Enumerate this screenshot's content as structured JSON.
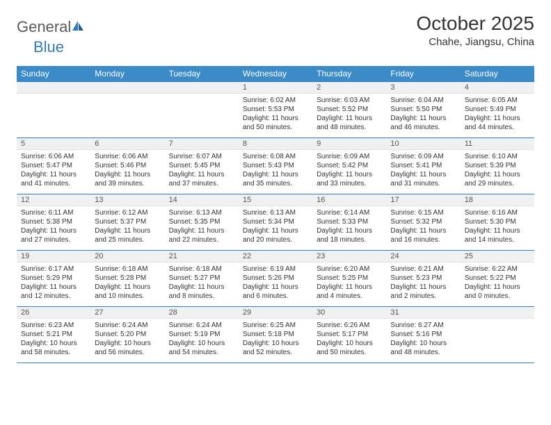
{
  "brand": {
    "general": "General",
    "blue": "Blue"
  },
  "title": "October 2025",
  "location": "Chahe, Jiangsu, China",
  "colors": {
    "header_bg": "#3b8bc9",
    "header_text": "#ffffff",
    "rule": "#2f7ac0",
    "daynum_bg": "#eef0f2",
    "body_text": "#333333",
    "logo_gray": "#5a5a5a",
    "logo_blue": "#2f7ac0"
  },
  "typography": {
    "title_fontsize": 28,
    "location_fontsize": 15,
    "dayhead_fontsize": 12,
    "daynum_fontsize": 11,
    "body_fontsize": 10
  },
  "day_names": [
    "Sunday",
    "Monday",
    "Tuesday",
    "Wednesday",
    "Thursday",
    "Friday",
    "Saturday"
  ],
  "weeks": [
    [
      null,
      null,
      null,
      {
        "n": "1",
        "sunrise": "6:02 AM",
        "sunset": "5:53 PM",
        "daylight": "11 hours and 50 minutes."
      },
      {
        "n": "2",
        "sunrise": "6:03 AM",
        "sunset": "5:52 PM",
        "daylight": "11 hours and 48 minutes."
      },
      {
        "n": "3",
        "sunrise": "6:04 AM",
        "sunset": "5:50 PM",
        "daylight": "11 hours and 46 minutes."
      },
      {
        "n": "4",
        "sunrise": "6:05 AM",
        "sunset": "5:49 PM",
        "daylight": "11 hours and 44 minutes."
      }
    ],
    [
      {
        "n": "5",
        "sunrise": "6:06 AM",
        "sunset": "5:47 PM",
        "daylight": "11 hours and 41 minutes."
      },
      {
        "n": "6",
        "sunrise": "6:06 AM",
        "sunset": "5:46 PM",
        "daylight": "11 hours and 39 minutes."
      },
      {
        "n": "7",
        "sunrise": "6:07 AM",
        "sunset": "5:45 PM",
        "daylight": "11 hours and 37 minutes."
      },
      {
        "n": "8",
        "sunrise": "6:08 AM",
        "sunset": "5:43 PM",
        "daylight": "11 hours and 35 minutes."
      },
      {
        "n": "9",
        "sunrise": "6:09 AM",
        "sunset": "5:42 PM",
        "daylight": "11 hours and 33 minutes."
      },
      {
        "n": "10",
        "sunrise": "6:09 AM",
        "sunset": "5:41 PM",
        "daylight": "11 hours and 31 minutes."
      },
      {
        "n": "11",
        "sunrise": "6:10 AM",
        "sunset": "5:39 PM",
        "daylight": "11 hours and 29 minutes."
      }
    ],
    [
      {
        "n": "12",
        "sunrise": "6:11 AM",
        "sunset": "5:38 PM",
        "daylight": "11 hours and 27 minutes."
      },
      {
        "n": "13",
        "sunrise": "6:12 AM",
        "sunset": "5:37 PM",
        "daylight": "11 hours and 25 minutes."
      },
      {
        "n": "14",
        "sunrise": "6:13 AM",
        "sunset": "5:35 PM",
        "daylight": "11 hours and 22 minutes."
      },
      {
        "n": "15",
        "sunrise": "6:13 AM",
        "sunset": "5:34 PM",
        "daylight": "11 hours and 20 minutes."
      },
      {
        "n": "16",
        "sunrise": "6:14 AM",
        "sunset": "5:33 PM",
        "daylight": "11 hours and 18 minutes."
      },
      {
        "n": "17",
        "sunrise": "6:15 AM",
        "sunset": "5:32 PM",
        "daylight": "11 hours and 16 minutes."
      },
      {
        "n": "18",
        "sunrise": "6:16 AM",
        "sunset": "5:30 PM",
        "daylight": "11 hours and 14 minutes."
      }
    ],
    [
      {
        "n": "19",
        "sunrise": "6:17 AM",
        "sunset": "5:29 PM",
        "daylight": "11 hours and 12 minutes."
      },
      {
        "n": "20",
        "sunrise": "6:18 AM",
        "sunset": "5:28 PM",
        "daylight": "11 hours and 10 minutes."
      },
      {
        "n": "21",
        "sunrise": "6:18 AM",
        "sunset": "5:27 PM",
        "daylight": "11 hours and 8 minutes."
      },
      {
        "n": "22",
        "sunrise": "6:19 AM",
        "sunset": "5:26 PM",
        "daylight": "11 hours and 6 minutes."
      },
      {
        "n": "23",
        "sunrise": "6:20 AM",
        "sunset": "5:25 PM",
        "daylight": "11 hours and 4 minutes."
      },
      {
        "n": "24",
        "sunrise": "6:21 AM",
        "sunset": "5:23 PM",
        "daylight": "11 hours and 2 minutes."
      },
      {
        "n": "25",
        "sunrise": "6:22 AM",
        "sunset": "5:22 PM",
        "daylight": "11 hours and 0 minutes."
      }
    ],
    [
      {
        "n": "26",
        "sunrise": "6:23 AM",
        "sunset": "5:21 PM",
        "daylight": "10 hours and 58 minutes."
      },
      {
        "n": "27",
        "sunrise": "6:24 AM",
        "sunset": "5:20 PM",
        "daylight": "10 hours and 56 minutes."
      },
      {
        "n": "28",
        "sunrise": "6:24 AM",
        "sunset": "5:19 PM",
        "daylight": "10 hours and 54 minutes."
      },
      {
        "n": "29",
        "sunrise": "6:25 AM",
        "sunset": "5:18 PM",
        "daylight": "10 hours and 52 minutes."
      },
      {
        "n": "30",
        "sunrise": "6:26 AM",
        "sunset": "5:17 PM",
        "daylight": "10 hours and 50 minutes."
      },
      {
        "n": "31",
        "sunrise": "6:27 AM",
        "sunset": "5:16 PM",
        "daylight": "10 hours and 48 minutes."
      },
      null
    ]
  ],
  "labels": {
    "sunrise": "Sunrise:",
    "sunset": "Sunset:",
    "daylight": "Daylight:"
  }
}
